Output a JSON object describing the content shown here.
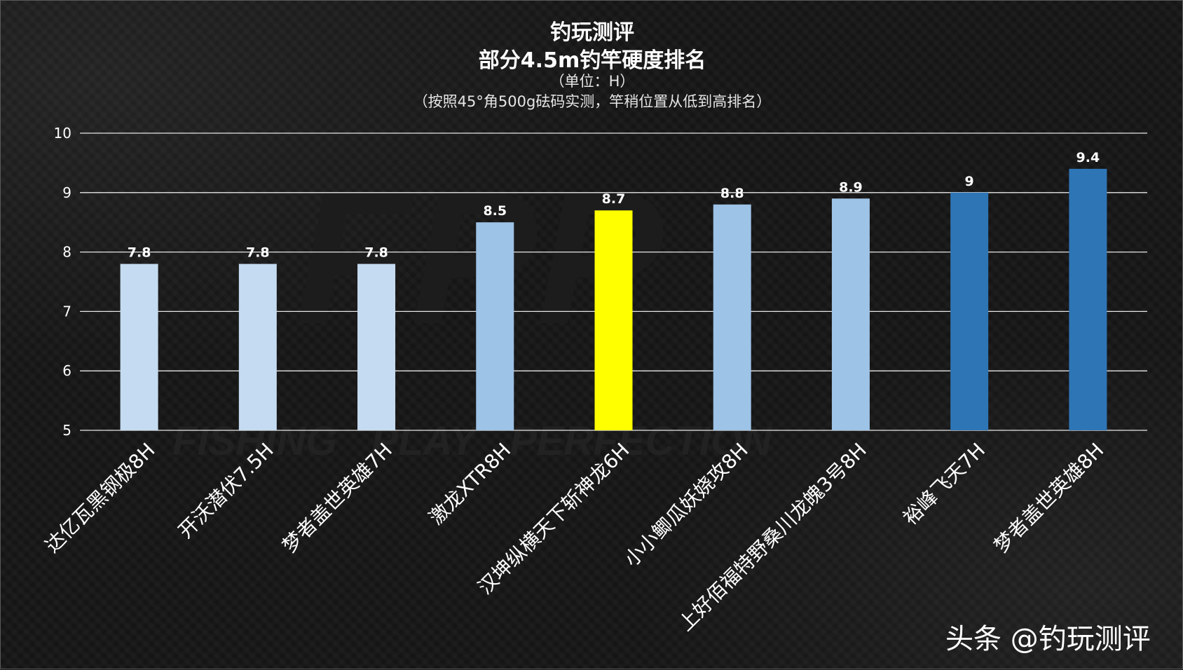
{
  "header": {
    "title": "钓玩测评",
    "subtitle": "部分4.5m钓竿硬度排名",
    "unit": "（单位：H）",
    "note": "（按照45°角500g砝码实测，竿稍位置从低到高排名）"
  },
  "background_text": "FISHING   PLAY   PERFECTION",
  "watermark": "头条 @钓玩测评",
  "chart_data": {
    "type": "bar",
    "title": "部分4.5m钓竿硬度排名",
    "xlabel": "",
    "ylabel": "H",
    "ylim": [
      5,
      10
    ],
    "yticks": [
      5,
      6,
      7,
      8,
      9,
      10
    ],
    "grid": true,
    "categories": [
      "达亿瓦黑钢极8H",
      "开沃潜伏7.5H",
      "梦者盖世英雄7H",
      "激龙XTR8H",
      "汉坤纵横天下斩神龙6H",
      "小小鲫瓜妖娆攻8H",
      "上好佰福特野桑川龙魄3号8H",
      "裕峰飞天7H",
      "梦者盖世英雄8H"
    ],
    "values": [
      7.8,
      7.8,
      7.8,
      8.5,
      8.7,
      8.8,
      8.9,
      9,
      9.4
    ],
    "value_labels": [
      "7.8",
      "7.8",
      "7.8",
      "8.5",
      "8.7",
      "8.8",
      "8.9",
      "9",
      "9.4"
    ],
    "bar_colors": [
      "#c5dbf1",
      "#c5dbf1",
      "#c5dbf1",
      "#9dc3e6",
      "#ffff00",
      "#9dc3e6",
      "#9dc3e6",
      "#2e75b6",
      "#2e75b6"
    ]
  }
}
